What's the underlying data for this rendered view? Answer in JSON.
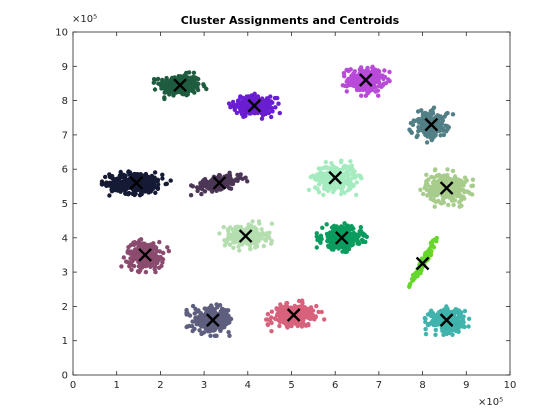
{
  "chart_data": {
    "type": "scatter",
    "title": "Cluster Assignments and Centroids",
    "xlabel": "",
    "ylabel": "",
    "xlim": [
      0,
      10
    ],
    "ylim": [
      0,
      10
    ],
    "x_ticks": [
      "0",
      "1",
      "2",
      "3",
      "4",
      "5",
      "6",
      "7",
      "8",
      "9",
      "10"
    ],
    "y_ticks": [
      "0",
      "1",
      "2",
      "3",
      "4",
      "5",
      "6",
      "7",
      "8",
      "9",
      "10"
    ],
    "x_exponent_label": "×10⁵",
    "y_exponent_label": "×10⁵",
    "grid": false,
    "legend": "none",
    "centroid_marker": "x",
    "centroid_color": "#000000",
    "clusters": [
      {
        "color": "#1f5c3f",
        "centroid": [
          2.45,
          8.45
        ],
        "spread": [
          0.42,
          0.28
        ],
        "tilt": 0.0,
        "count": 260
      },
      {
        "color": "#6a1ed2",
        "centroid": [
          4.15,
          7.85
        ],
        "spread": [
          0.42,
          0.25
        ],
        "tilt": -0.1,
        "count": 240
      },
      {
        "color": "#b94ad9",
        "centroid": [
          6.7,
          8.6
        ],
        "spread": [
          0.38,
          0.32
        ],
        "tilt": 0.0,
        "count": 240
      },
      {
        "color": "#527f86",
        "centroid": [
          8.2,
          7.3
        ],
        "spread": [
          0.32,
          0.35
        ],
        "tilt": -0.5,
        "count": 200
      },
      {
        "color": "#151b35",
        "centroid": [
          1.45,
          5.6
        ],
        "spread": [
          0.55,
          0.28
        ],
        "tilt": 0.0,
        "count": 320
      },
      {
        "color": "#4c3656",
        "centroid": [
          3.35,
          5.6
        ],
        "spread": [
          0.5,
          0.16
        ],
        "tilt": 0.25,
        "count": 180
      },
      {
        "color": "#a4ecc0",
        "centroid": [
          6.0,
          5.75
        ],
        "spread": [
          0.42,
          0.35
        ],
        "tilt": 0.0,
        "count": 260
      },
      {
        "color": "#a8cc8c",
        "centroid": [
          8.55,
          5.45
        ],
        "spread": [
          0.42,
          0.38
        ],
        "tilt": 0.0,
        "count": 280
      },
      {
        "color": "#8b4b6e",
        "centroid": [
          1.65,
          3.5
        ],
        "spread": [
          0.38,
          0.35
        ],
        "tilt": 0.0,
        "count": 220
      },
      {
        "color": "#b5deb0",
        "centroid": [
          3.95,
          4.05
        ],
        "spread": [
          0.42,
          0.3
        ],
        "tilt": 0.0,
        "count": 240
      },
      {
        "color": "#0a9c5e",
        "centroid": [
          6.15,
          4.0
        ],
        "spread": [
          0.4,
          0.3
        ],
        "tilt": 0.0,
        "count": 280
      },
      {
        "color": "#66d62a",
        "centroid": [
          8.0,
          3.25
        ],
        "spread": [
          0.62,
          0.05
        ],
        "tilt": 1.15,
        "count": 140
      },
      {
        "color": "#5e5f7e",
        "centroid": [
          3.2,
          1.6
        ],
        "spread": [
          0.42,
          0.32
        ],
        "tilt": 0.0,
        "count": 260
      },
      {
        "color": "#d8617c",
        "centroid": [
          5.05,
          1.75
        ],
        "spread": [
          0.45,
          0.26
        ],
        "tilt": 0.25,
        "count": 240
      },
      {
        "color": "#40b3ad",
        "centroid": [
          8.55,
          1.6
        ],
        "spread": [
          0.36,
          0.3
        ],
        "tilt": 0.0,
        "count": 240
      }
    ]
  }
}
